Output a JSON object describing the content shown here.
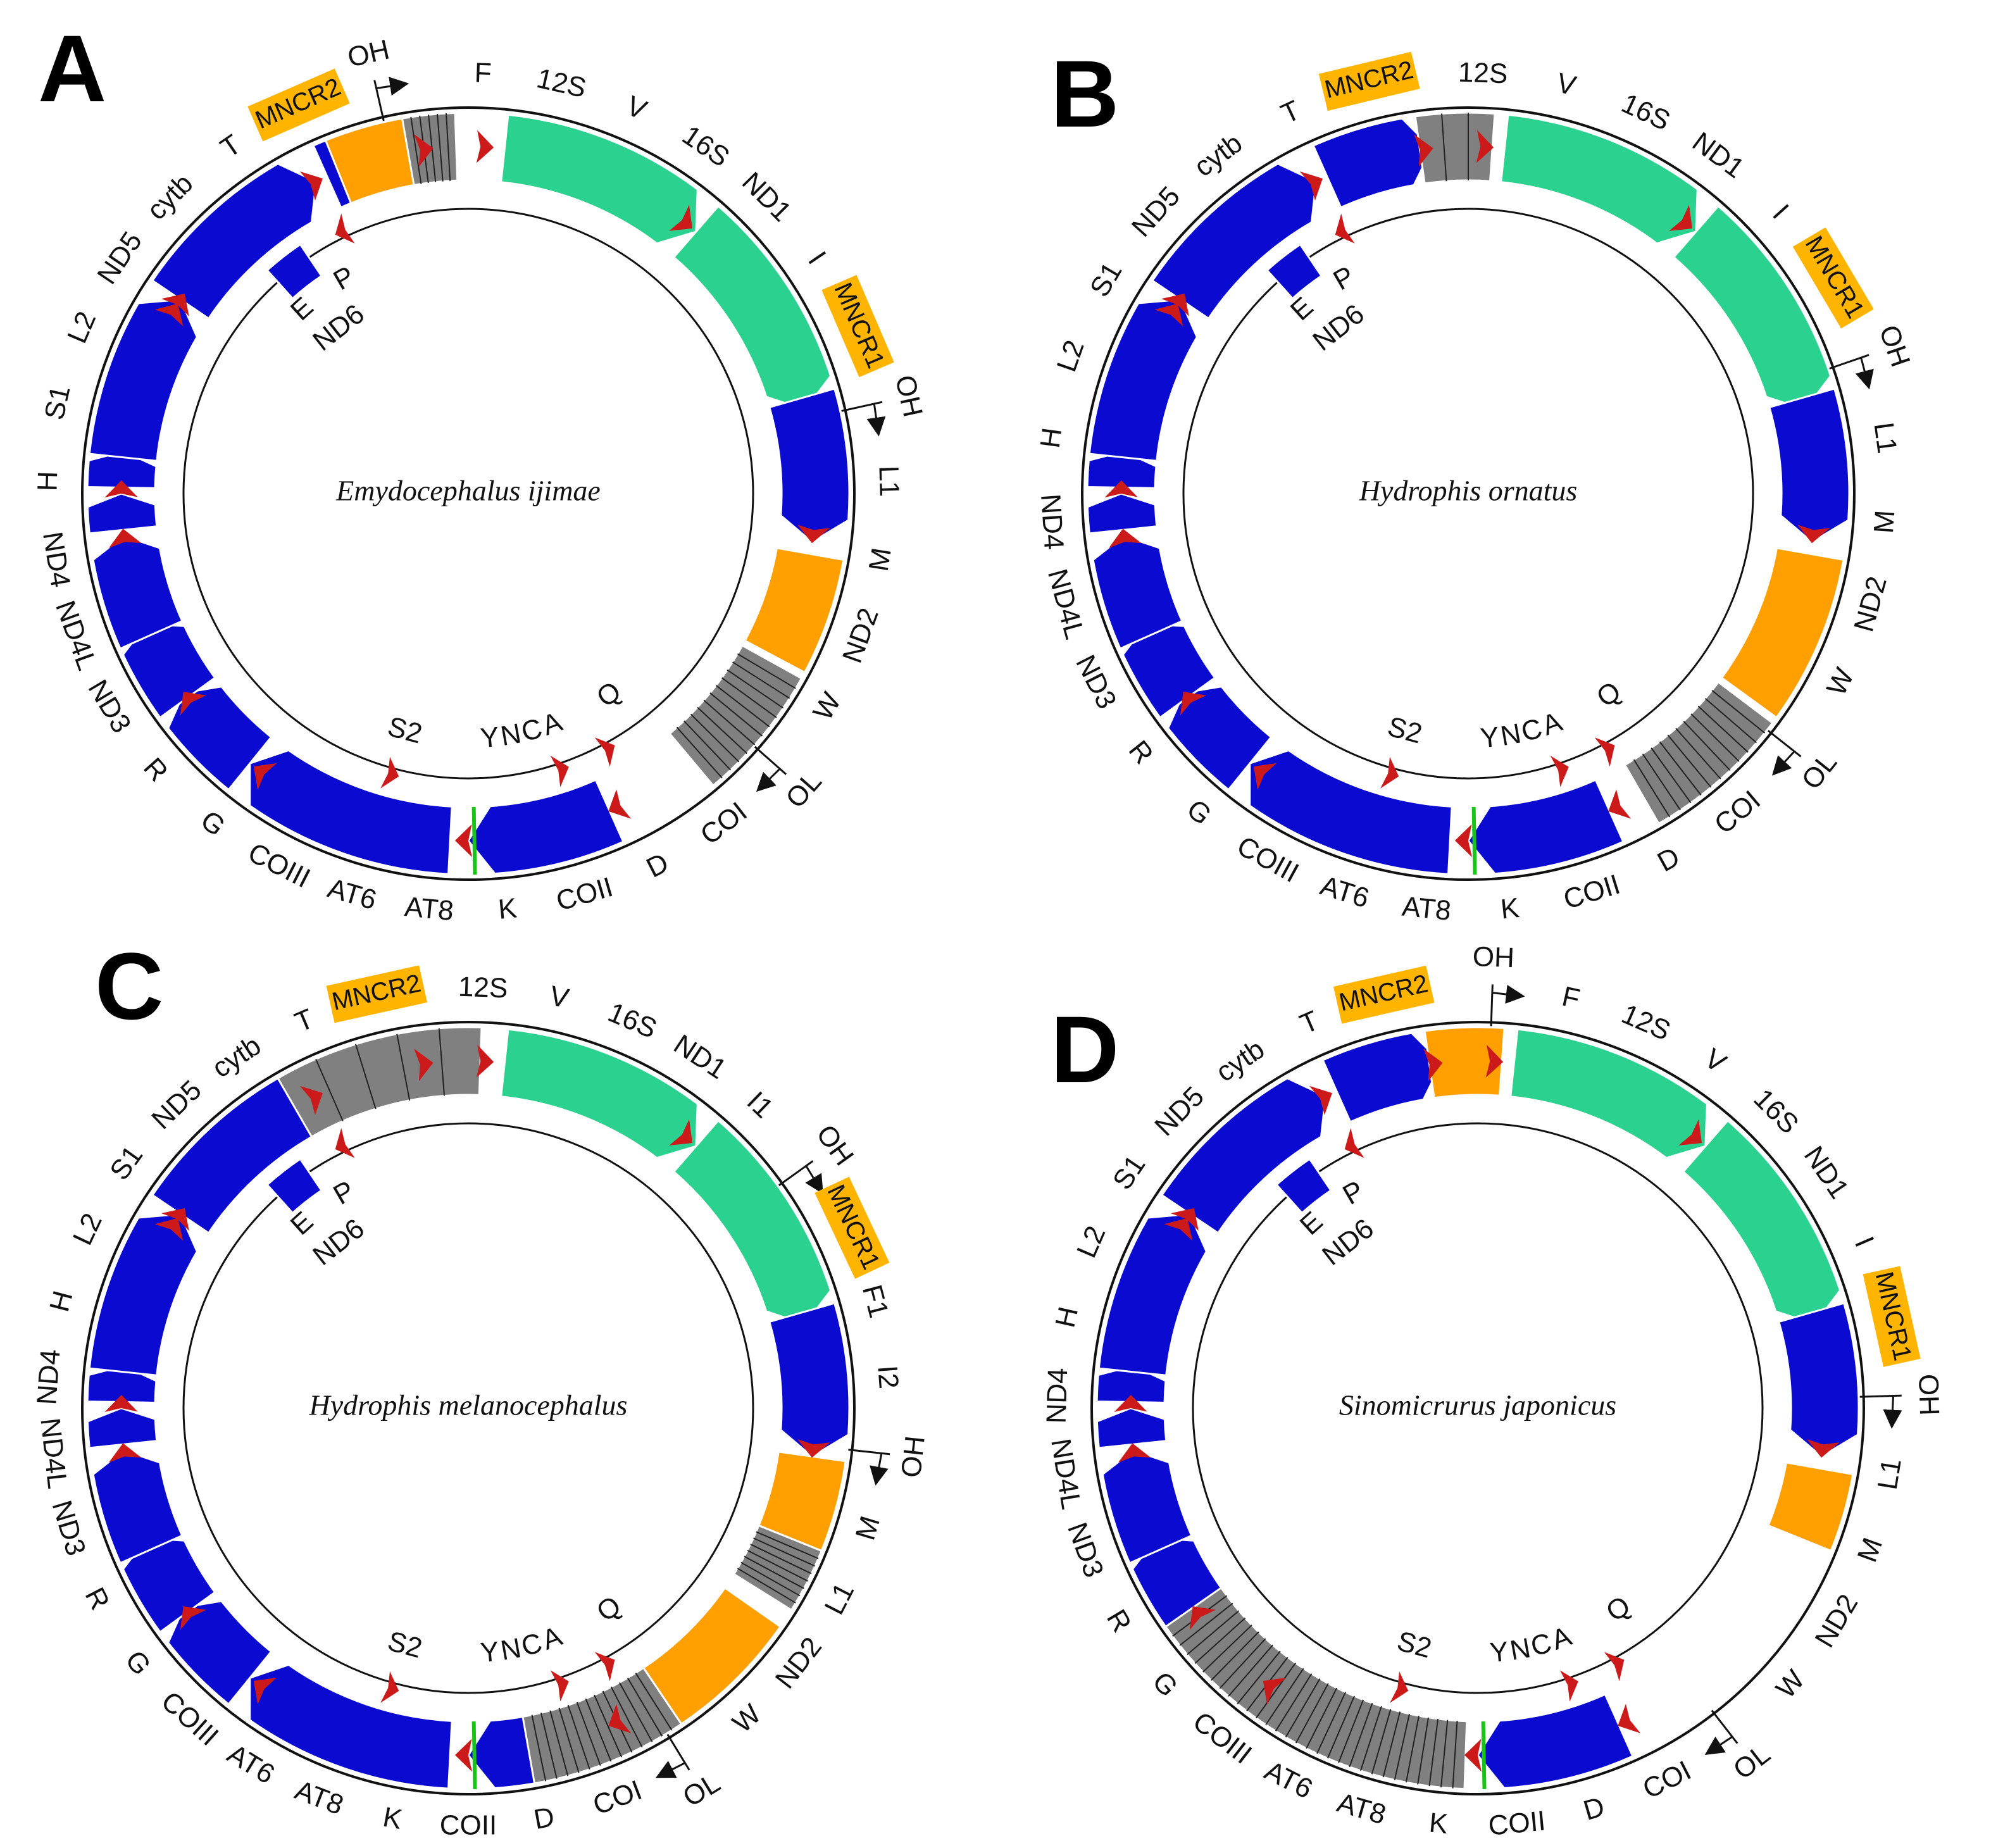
{
  "figure": {
    "colors": {
      "protein": "#0a0ad0",
      "rrna": "#2bd18e",
      "noncoding": "#ff9f00",
      "repeat": "#808080",
      "trna": "#cc1a1a",
      "origin_line": "#19c419",
      "highlight": "#ffb400"
    },
    "icons": [
      "arrow-icon",
      "trna-arrowhead-icon"
    ],
    "panels": [
      {
        "letter": "A",
        "species": "Emydocephalus ijimae",
        "outer_labels": [
          "F",
          "12S",
          "V",
          "16S",
          "ND1",
          "I",
          "MNCR1",
          "OH",
          "L1",
          "M",
          "ND2",
          "W",
          "OL",
          "COI",
          "D",
          "COII",
          "K",
          "AT8",
          "AT6",
          "COIII",
          "G",
          "R",
          "ND3",
          "ND4L",
          "ND4",
          "H",
          "S1",
          "L2",
          "ND5",
          "cytb",
          "T",
          "MNCR2",
          "OH"
        ],
        "inner_labels": [
          "P",
          "E",
          "ND6",
          "Q",
          "A",
          "C",
          "N",
          "Y",
          "S2"
        ],
        "highlighted": [
          "MNCR1",
          "MNCR2"
        ]
      },
      {
        "letter": "B",
        "species": "Hydrophis ornatus",
        "outer_labels": [
          "12S",
          "V",
          "16S",
          "ND1",
          "I",
          "MNCR1",
          "OH",
          "L1",
          "M",
          "ND2",
          "W",
          "OL",
          "COI",
          "D",
          "COII",
          "K",
          "AT8",
          "AT6",
          "COIII",
          "G",
          "R",
          "ND3",
          "ND4L",
          "ND4",
          "H",
          "L2",
          "S1",
          "ND5",
          "cytb",
          "T",
          "MNCR2"
        ],
        "inner_labels": [
          "P",
          "E",
          "ND6",
          "Q",
          "A",
          "C",
          "N",
          "Y",
          "S2"
        ],
        "highlighted": [
          "MNCR1",
          "MNCR2"
        ]
      },
      {
        "letter": "C",
        "species": "Hydrophis melanocephalus",
        "outer_labels": [
          "12S",
          "V",
          "16S",
          "ND1",
          "I1",
          "OH",
          "MNCR1",
          "F1",
          "I2",
          "OH",
          "M",
          "L1",
          "ND2",
          "W",
          "OL",
          "COI",
          "D",
          "COII",
          "K",
          "AT8",
          "AT6",
          "COIII",
          "G",
          "R",
          "ND3",
          "ND4L",
          "ND4",
          "H",
          "L2",
          "S1",
          "ND5",
          "cytb",
          "T",
          "MNCR2"
        ],
        "inner_labels": [
          "P",
          "E",
          "ND6",
          "Q",
          "A",
          "C",
          "N",
          "Y",
          "S2"
        ],
        "highlighted": [
          "MNCR1",
          "MNCR2"
        ]
      },
      {
        "letter": "D",
        "species": "Sinomicrurus japonicus",
        "outer_labels": [
          "OH",
          "F",
          "12S",
          "V",
          "16S",
          "ND1",
          "I",
          "MNCR1",
          "OH",
          "L1",
          "M",
          "ND2",
          "W",
          "OL",
          "COI",
          "D",
          "COII",
          "K",
          "AT8",
          "AT6",
          "COIII",
          "G",
          "R",
          "ND3",
          "ND4L",
          "ND4",
          "H",
          "L2",
          "S1",
          "ND5",
          "cytb",
          "T",
          "MNCR2"
        ],
        "inner_labels": [
          "P",
          "E",
          "ND6",
          "Q",
          "A",
          "C",
          "N",
          "Y",
          "S2"
        ],
        "highlighted": [
          "MNCR1",
          "MNCR2"
        ]
      }
    ]
  }
}
